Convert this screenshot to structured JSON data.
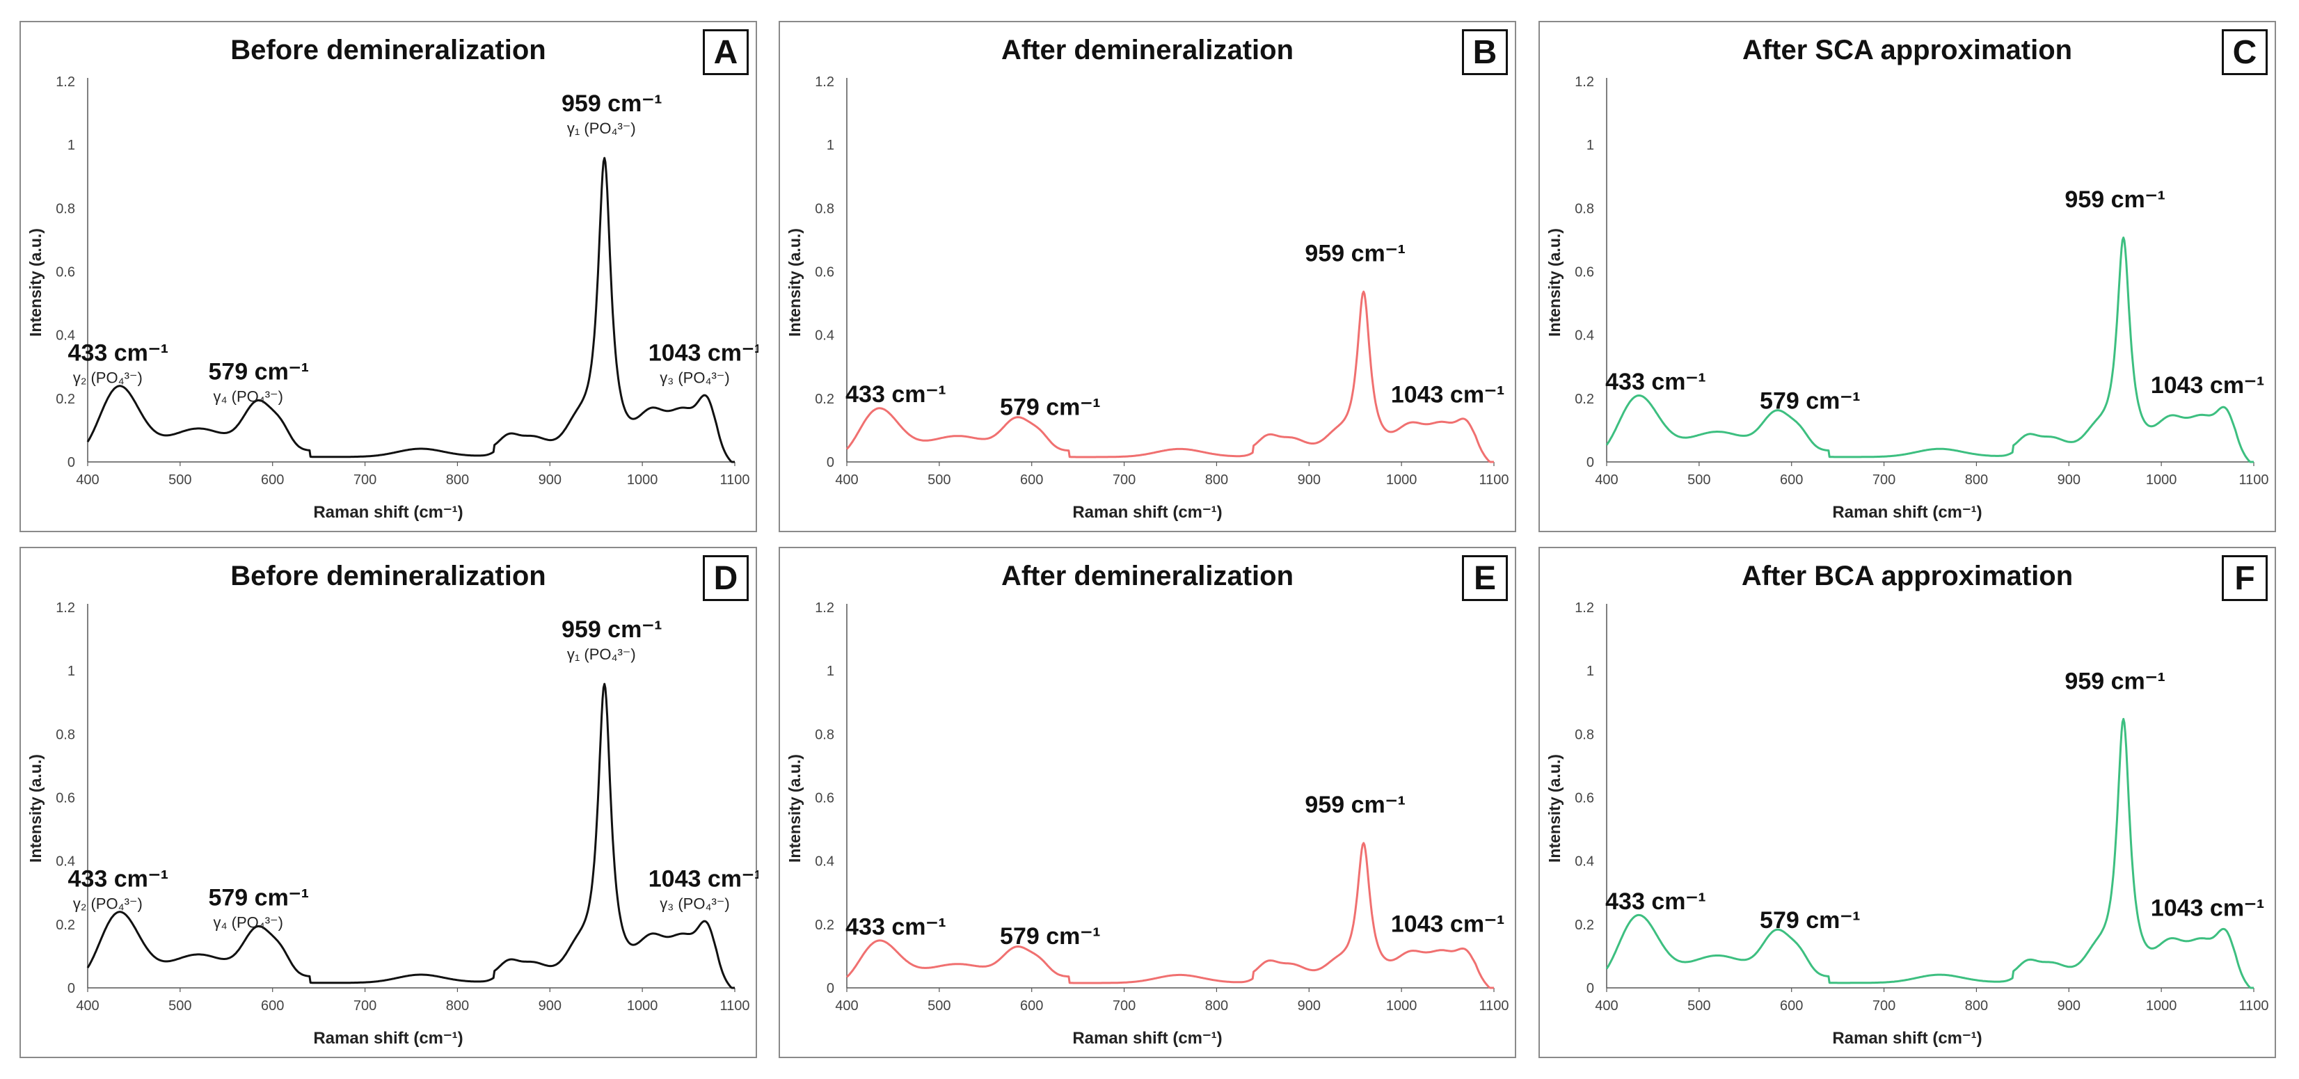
{
  "common": {
    "xlabel": "Raman shift (cm⁻¹)",
    "ylabel": "Intensity (a.u.)",
    "xticks": [
      "400",
      "500",
      "600",
      "700",
      "800",
      "900",
      "1000",
      "1100"
    ],
    "yticks": [
      "0",
      "0.2",
      "0.4",
      "0.6",
      "0.8",
      "1",
      "1.2"
    ],
    "peak_labels": [
      "433 cm⁻¹",
      "579 cm⁻¹",
      "959 cm⁻¹",
      "1043 cm⁻¹"
    ],
    "assignment_labels": [
      "γ₂ (PO₄³⁻)",
      "γ₄ (PO₄³⁻)",
      "γ₁ (PO₄³⁻)",
      "γ₃ (PO₄³⁻)"
    ]
  },
  "panels": [
    {
      "letter": "A",
      "title": "Before demineralization"
    },
    {
      "letter": "B",
      "title": "After demineralization"
    },
    {
      "letter": "C",
      "title": "After SCA approximation"
    },
    {
      "letter": "D",
      "title": "Before demineralization"
    },
    {
      "letter": "E",
      "title": "After demineralization"
    },
    {
      "letter": "F",
      "title": "After BCA approximation"
    }
  ],
  "colors": {
    "before": "#111111",
    "after": "#f07070",
    "approx": "#3dbf80"
  },
  "chart_data": [
    {
      "type": "line",
      "panel": "A",
      "title": "Before demineralization",
      "xlabel": "Raman shift (cm⁻¹)",
      "ylabel": "Intensity (a.u.)",
      "xlim": [
        400,
        1100
      ],
      "ylim": [
        0,
        1.2
      ],
      "color_key": "before",
      "peak_heights": [
        0.21,
        0.15,
        1.0,
        0.19
      ],
      "has_assignments": true
    },
    {
      "type": "line",
      "panel": "B",
      "title": "After demineralization",
      "xlabel": "Raman shift (cm⁻¹)",
      "ylabel": "Intensity (a.u.)",
      "xlim": [
        400,
        1100
      ],
      "ylim": [
        0,
        1.2
      ],
      "color_key": "after",
      "peak_heights": [
        0.14,
        0.1,
        0.58,
        0.13
      ],
      "has_assignments": false
    },
    {
      "type": "line",
      "panel": "C",
      "title": "After SCA approximation",
      "xlabel": "Raman shift (cm⁻¹)",
      "ylabel": "Intensity (a.u.)",
      "xlim": [
        400,
        1100
      ],
      "ylim": [
        0,
        1.2
      ],
      "color_key": "approx",
      "peak_heights": [
        0.18,
        0.12,
        0.75,
        0.16
      ],
      "has_assignments": false
    },
    {
      "type": "line",
      "panel": "D",
      "title": "Before demineralization",
      "xlabel": "Raman shift (cm⁻¹)",
      "ylabel": "Intensity (a.u.)",
      "xlim": [
        400,
        1100
      ],
      "ylim": [
        0,
        1.2
      ],
      "color_key": "before",
      "peak_heights": [
        0.21,
        0.15,
        1.0,
        0.19
      ],
      "has_assignments": true
    },
    {
      "type": "line",
      "panel": "E",
      "title": "After demineralization",
      "xlabel": "Raman shift (cm⁻¹)",
      "ylabel": "Intensity (a.u.)",
      "xlim": [
        400,
        1100
      ],
      "ylim": [
        0,
        1.2
      ],
      "color_key": "after",
      "peak_heights": [
        0.12,
        0.09,
        0.5,
        0.12
      ],
      "has_assignments": false
    },
    {
      "type": "line",
      "panel": "F",
      "title": "After BCA approximation",
      "xlabel": "Raman shift (cm⁻¹)",
      "ylabel": "Intensity (a.u.)",
      "xlim": [
        400,
        1100
      ],
      "ylim": [
        0,
        1.2
      ],
      "color_key": "approx",
      "peak_heights": [
        0.2,
        0.14,
        0.89,
        0.17
      ],
      "has_assignments": false
    }
  ]
}
